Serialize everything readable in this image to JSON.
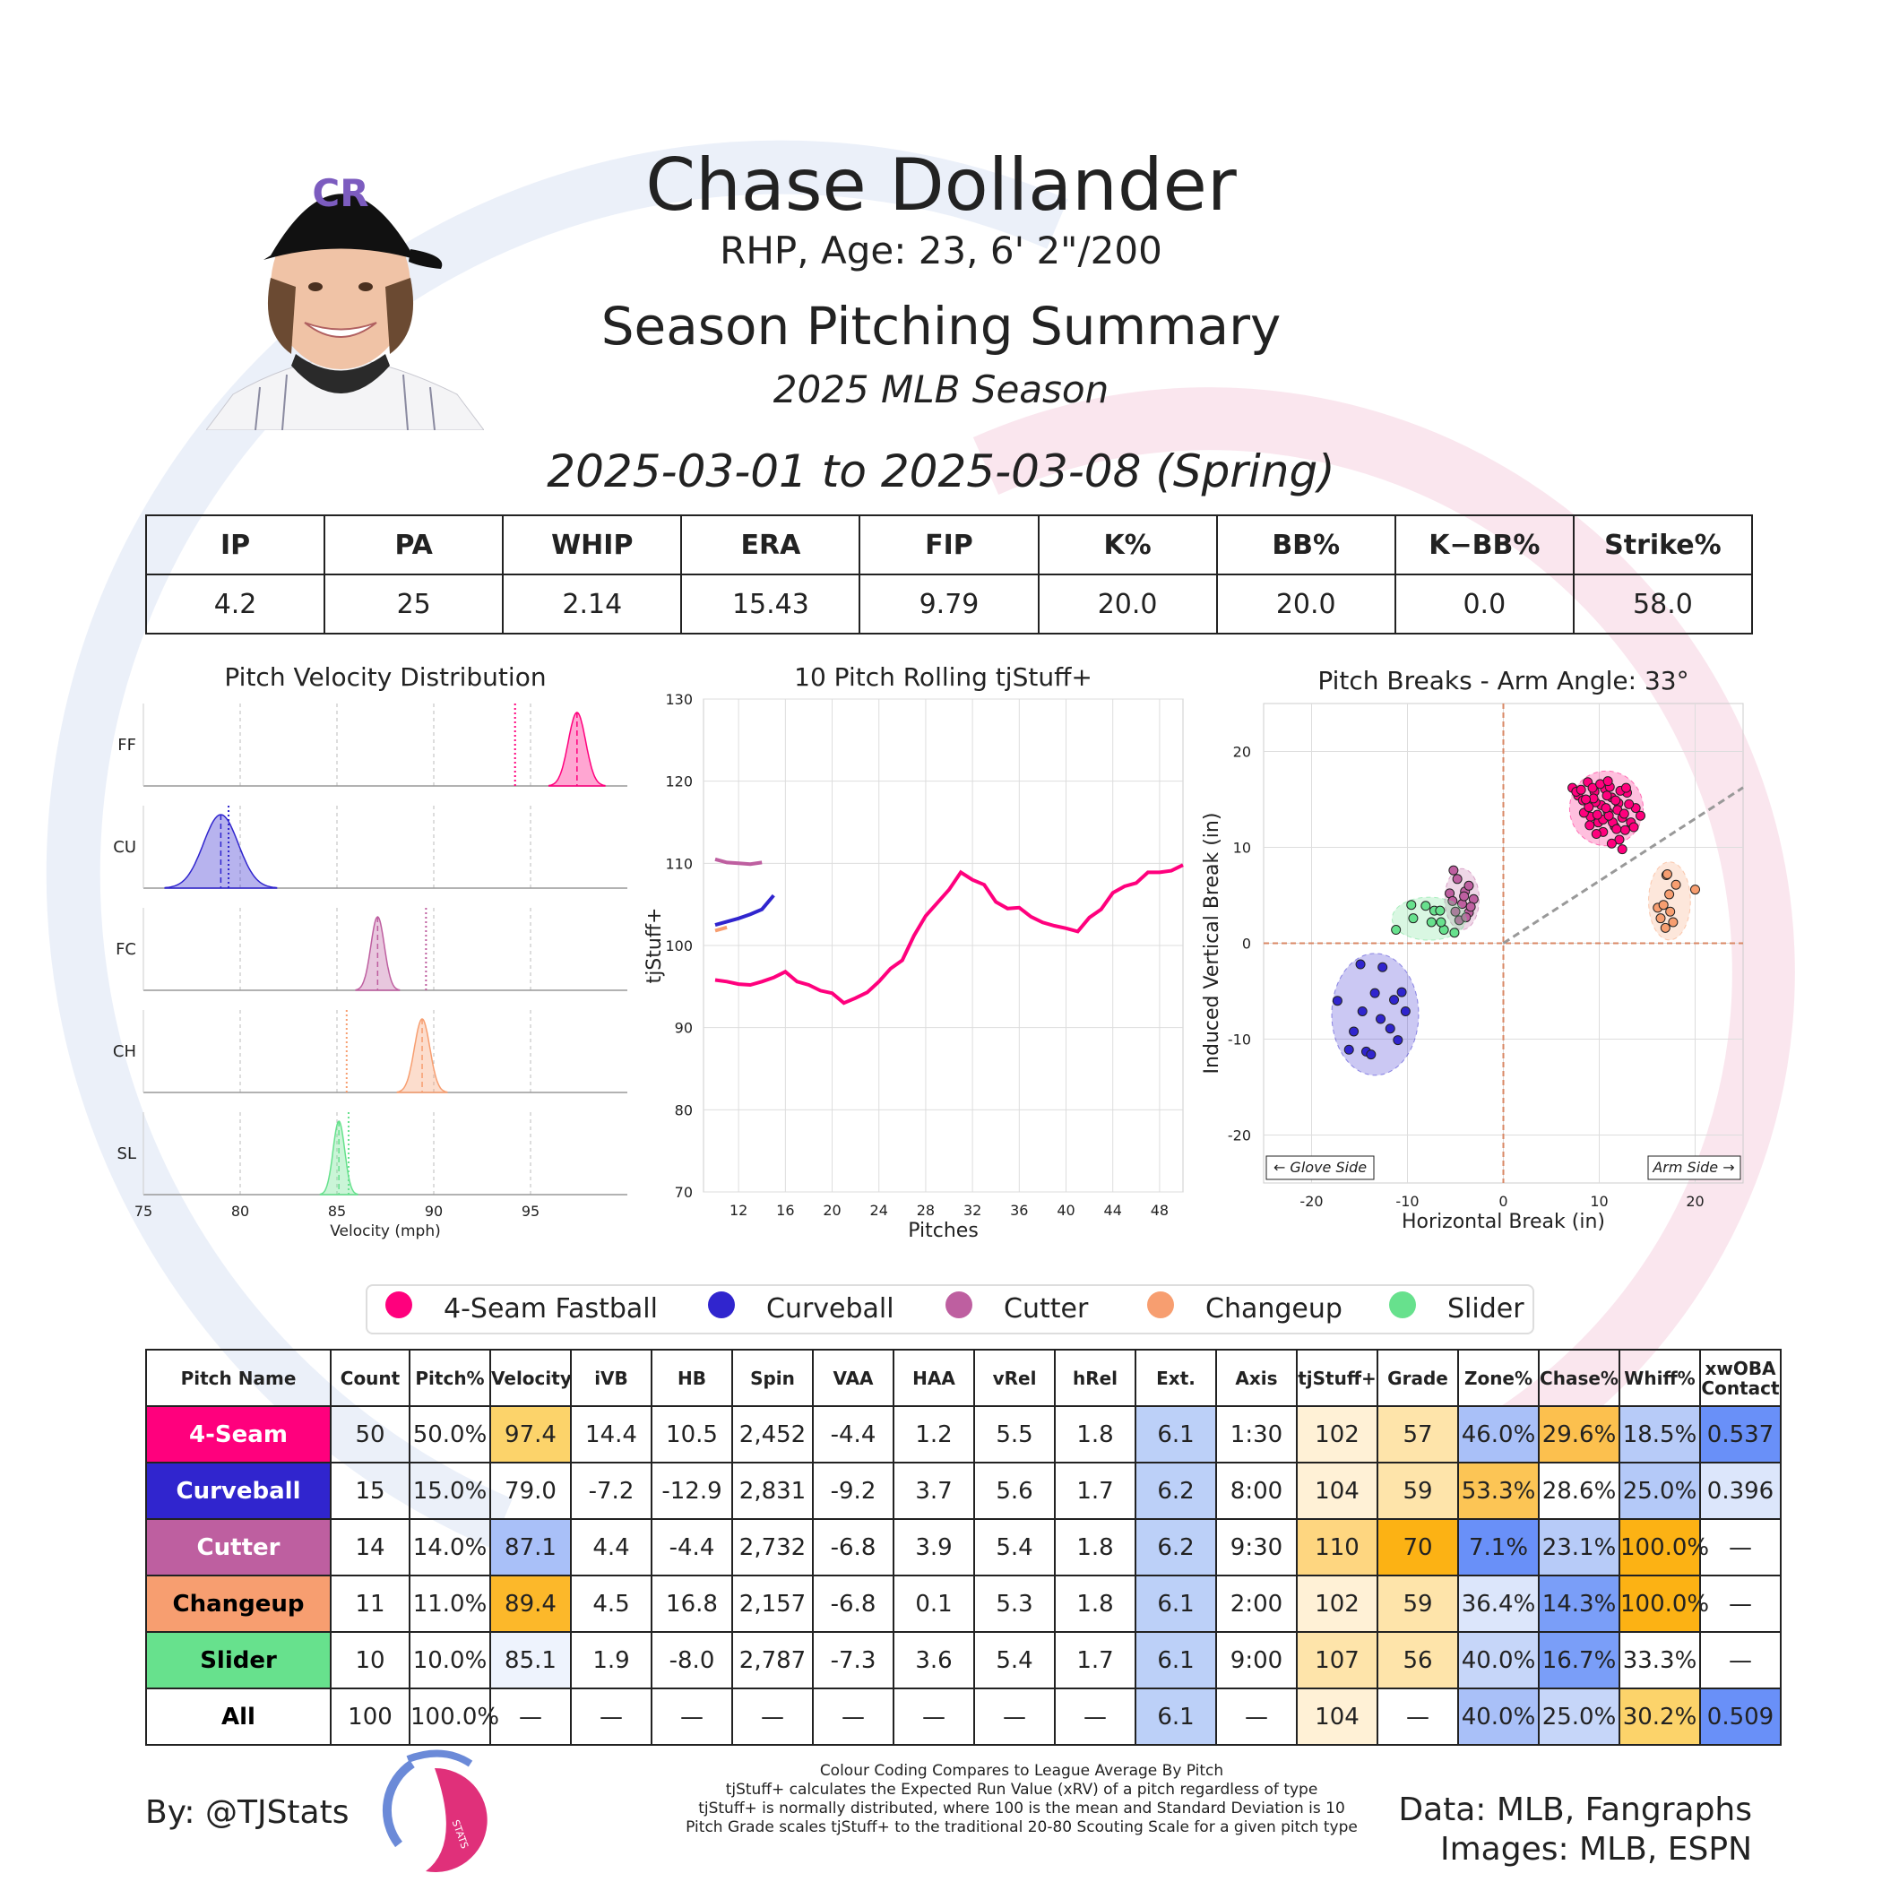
{
  "header": {
    "name": "Chase Dollander",
    "bio": "RHP, Age: 23, 6' 2\"/200",
    "title": "Season Pitching Summary",
    "season": "2025 MLB Season",
    "date_range": "2025-03-01 to 2025-03-08 (Spring)",
    "headshot_icon": "player-headshot-icon"
  },
  "summary": {
    "headers": [
      "IP",
      "PA",
      "WHIP",
      "ERA",
      "FIP",
      "K%",
      "BB%",
      "K−BB%",
      "Strike%"
    ],
    "values": [
      "4.2",
      "25",
      "2.14",
      "15.43",
      "9.79",
      "20.0",
      "20.0",
      "0.0",
      "58.0"
    ]
  },
  "colors": {
    "4-Seam Fastball": "#ff007d",
    "Curveball": "#3025ce",
    "Cutter": "#be5fa0",
    "Changeup": "#f79e70",
    "Slider": "#67e18d"
  },
  "legend": [
    "4-Seam Fastball",
    "Curveball",
    "Cutter",
    "Changeup",
    "Slider"
  ],
  "chart_data": [
    {
      "type": "area",
      "title": "Pitch Velocity Distribution",
      "xlabel": "Velocity (mph)",
      "ylabel": "",
      "xlim": [
        75,
        100
      ],
      "xticks": [
        75,
        80,
        85,
        90,
        95
      ],
      "rows": [
        {
          "code": "FF",
          "pitch": "4-Seam Fastball",
          "mean": 97.4,
          "sd": 0.45,
          "league_avg": 94.2
        },
        {
          "code": "CU",
          "pitch": "Curveball",
          "mean": 79.0,
          "sd": 0.9,
          "league_avg": 79.4
        },
        {
          "code": "FC",
          "pitch": "Cutter",
          "mean": 87.1,
          "sd": 0.35,
          "league_avg": 89.6
        },
        {
          "code": "CH",
          "pitch": "Changeup",
          "mean": 89.4,
          "sd": 0.4,
          "league_avg": 85.5
        },
        {
          "code": "SL",
          "pitch": "Slider",
          "mean": 85.1,
          "sd": 0.3,
          "league_avg": 85.6
        }
      ]
    },
    {
      "type": "line",
      "title": "10 Pitch Rolling tjStuff+",
      "xlabel": "Pitches",
      "ylabel": "tjStuff+",
      "xlim": [
        9,
        50
      ],
      "ylim": [
        70,
        130
      ],
      "xticks": [
        12,
        16,
        20,
        24,
        28,
        32,
        36,
        40,
        44,
        48
      ],
      "yticks": [
        70,
        80,
        90,
        100,
        110,
        120,
        130
      ],
      "series": [
        {
          "pitch": "4-Seam Fastball",
          "x": [
            10,
            11,
            12,
            13,
            14,
            15,
            16,
            17,
            18,
            19,
            20,
            21,
            22,
            23,
            24,
            25,
            26,
            27,
            28,
            29,
            30,
            31,
            32,
            33,
            34,
            35,
            36,
            37,
            38,
            39,
            40,
            41,
            42,
            43,
            44,
            45,
            46,
            47,
            48,
            49,
            50
          ],
          "values": [
            95.8,
            95.6,
            95.3,
            95.2,
            95.6,
            96.1,
            96.8,
            95.6,
            95.2,
            94.5,
            94.2,
            93.0,
            93.6,
            94.3,
            95.6,
            97.2,
            98.2,
            101.2,
            103.6,
            105.2,
            106.8,
            108.9,
            108.0,
            107.4,
            105.3,
            104.5,
            104.6,
            103.5,
            102.8,
            102.4,
            102.1,
            101.7,
            103.4,
            104.4,
            106.4,
            107.2,
            107.6,
            108.9,
            108.9,
            109.1,
            109.8
          ]
        },
        {
          "pitch": "Curveball",
          "x": [
            10,
            11,
            12,
            13,
            14,
            15
          ],
          "values": [
            102.5,
            102.9,
            103.3,
            103.8,
            104.4,
            106.1
          ]
        },
        {
          "pitch": "Cutter",
          "x": [
            10,
            11,
            12,
            13,
            14
          ],
          "values": [
            110.5,
            110.1,
            110.0,
            109.9,
            110.1
          ]
        },
        {
          "pitch": "Changeup",
          "x": [
            10,
            11
          ],
          "values": [
            101.8,
            102.2
          ]
        }
      ]
    },
    {
      "type": "scatter",
      "title": "Pitch Breaks - Arm Angle: 33°",
      "xlabel": "Horizontal Break (in)",
      "ylabel": "Induced Vertical Break (in)",
      "xlim": [
        -25,
        25
      ],
      "ylim": [
        -25,
        25
      ],
      "xticks": [
        -20,
        -10,
        0,
        10,
        20
      ],
      "yticks": [
        -20,
        -10,
        0,
        10,
        20
      ],
      "arm_angle_deg": 33,
      "annotations": [
        "← Glove Side",
        "Arm Side →"
      ],
      "series": [
        {
          "pitch": "4-Seam Fastball",
          "points": [
            [
              7.2,
              16.2
            ],
            [
              7.8,
              15.4
            ],
            [
              8.3,
              14.9
            ],
            [
              8.8,
              16.8
            ],
            [
              9.1,
              13.2
            ],
            [
              9.5,
              15.8
            ],
            [
              9.9,
              12.6
            ],
            [
              10.2,
              14.4
            ],
            [
              10.6,
              16.1
            ],
            [
              10.9,
              13.7
            ],
            [
              11.3,
              15.2
            ],
            [
              11.6,
              12.2
            ],
            [
              12.0,
              14.6
            ],
            [
              12.4,
              13.1
            ],
            [
              12.9,
              15.7
            ],
            [
              13.3,
              12.6
            ],
            [
              13.8,
              14.1
            ],
            [
              14.3,
              13.3
            ],
            [
              8.4,
              13.6
            ],
            [
              9.6,
              14.7
            ],
            [
              10.4,
              12.9
            ],
            [
              11.1,
              16.3
            ],
            [
              11.9,
              13.9
            ],
            [
              12.7,
              11.8
            ],
            [
              9.3,
              16.2
            ],
            [
              10.8,
              15.4
            ],
            [
              13.1,
              14.5
            ],
            [
              7.6,
              15.8
            ],
            [
              11.4,
              12.6
            ],
            [
              12.2,
              15.9
            ],
            [
              9.8,
              13.4
            ],
            [
              10.1,
              16.6
            ],
            [
              8.9,
              14.2
            ],
            [
              12.6,
              13.5
            ],
            [
              11.7,
              14.9
            ],
            [
              10.4,
              11.6
            ],
            [
              9.4,
              15.1
            ],
            [
              11.0,
              13.3
            ],
            [
              13.6,
              12.1
            ],
            [
              12.1,
              10.8
            ],
            [
              9.0,
              12.3
            ],
            [
              10.7,
              14.1
            ],
            [
              8.1,
              16.0
            ],
            [
              11.3,
              10.4
            ],
            [
              12.8,
              16.2
            ],
            [
              9.7,
              11.4
            ],
            [
              10.9,
              16.9
            ],
            [
              12.4,
              9.8
            ],
            [
              8.6,
              15.0
            ],
            [
              11.8,
              11.9
            ]
          ]
        },
        {
          "pitch": "Curveball",
          "points": [
            [
              -17.3,
              -6.0
            ],
            [
              -15.6,
              -9.2
            ],
            [
              -16.1,
              -11.1
            ],
            [
              -14.3,
              -11.3
            ],
            [
              -14.7,
              -7.1
            ],
            [
              -13.4,
              -5.2
            ],
            [
              -12.8,
              -7.9
            ],
            [
              -11.4,
              -5.9
            ],
            [
              -10.6,
              -5.1
            ],
            [
              -11.8,
              -8.9
            ],
            [
              -12.6,
              -2.5
            ],
            [
              -13.8,
              -11.6
            ],
            [
              -10.2,
              -7.1
            ],
            [
              -14.9,
              -2.2
            ],
            [
              -11.0,
              -10.1
            ]
          ]
        },
        {
          "pitch": "Cutter",
          "points": [
            [
              -5.6,
              5.2
            ],
            [
              -4.3,
              4.1
            ],
            [
              -3.6,
              3.2
            ],
            [
              -4.0,
              5.4
            ],
            [
              -5.2,
              7.6
            ],
            [
              -3.1,
              4.6
            ],
            [
              -4.6,
              2.4
            ],
            [
              -3.6,
              6.0
            ],
            [
              -5.0,
              3.3
            ],
            [
              -4.1,
              4.9
            ],
            [
              -3.4,
              3.8
            ],
            [
              -4.8,
              6.7
            ],
            [
              -3.9,
              2.7
            ],
            [
              -5.3,
              4.4
            ]
          ]
        },
        {
          "pitch": "Changeup",
          "points": [
            [
              16.1,
              3.7
            ],
            [
              17.0,
              7.1
            ],
            [
              18.0,
              6.1
            ],
            [
              17.3,
              5.1
            ],
            [
              20.0,
              5.6
            ],
            [
              17.7,
              2.2
            ],
            [
              16.7,
              4.0
            ],
            [
              17.4,
              3.3
            ],
            [
              16.4,
              2.6
            ],
            [
              17.1,
              7.2
            ],
            [
              16.9,
              1.6
            ]
          ]
        },
        {
          "pitch": "Slider",
          "points": [
            [
              -11.2,
              1.4
            ],
            [
              -9.4,
              2.6
            ],
            [
              -9.6,
              4.0
            ],
            [
              -8.1,
              3.9
            ],
            [
              -7.5,
              2.2
            ],
            [
              -7.2,
              3.4
            ],
            [
              -6.2,
              1.4
            ],
            [
              -5.1,
              1.1
            ],
            [
              -6.5,
              2.2
            ],
            [
              -6.6,
              3.4
            ]
          ]
        }
      ]
    }
  ],
  "pitch_table": {
    "headers": [
      "Pitch Name",
      "Count",
      "Pitch%",
      "Velocity",
      "iVB",
      "HB",
      "Spin",
      "VAA",
      "HAA",
      "vRel",
      "hRel",
      "Ext.",
      "Axis",
      "tjStuff+",
      "Grade",
      "Zone%",
      "Chase%",
      "Whiff%",
      "xwOBA Contact"
    ],
    "rows": [
      {
        "name": "4-Seam",
        "name_bg": "#ff007d",
        "name_fg": "#ffffff",
        "cells": [
          "50",
          "50.0%",
          "97.4",
          "14.4",
          "10.5",
          "2,452",
          "-4.4",
          "1.2",
          "5.5",
          "1.8",
          "6.1",
          "1:30",
          "102",
          "57",
          "46.0%",
          "29.6%",
          "18.5%",
          "0.537"
        ],
        "bgs": [
          "",
          "",
          "#fcd36a",
          "",
          "",
          "",
          "",
          "",
          "",
          "",
          "#bcd0f8",
          "",
          "#fff1d6",
          "#fee4aa",
          "#a9c0f8",
          "#fcc04e",
          "#b7cbf8",
          "#6990f8"
        ]
      },
      {
        "name": "Curveball",
        "name_bg": "#3025ce",
        "name_fg": "#ffffff",
        "cells": [
          "15",
          "15.0%",
          "79.0",
          "-7.2",
          "-12.9",
          "2,831",
          "-9.2",
          "3.7",
          "5.6",
          "1.7",
          "6.2",
          "8:00",
          "104",
          "59",
          "53.3%",
          "28.6%",
          "25.0%",
          "0.396"
        ],
        "bgs": [
          "",
          "",
          "",
          "",
          "",
          "",
          "",
          "",
          "",
          "",
          "#bcd0f8",
          "",
          "#fff1d6",
          "#fee4aa",
          "#fcc555",
          "",
          "#b4c9f8",
          "#dce6fb"
        ]
      },
      {
        "name": "Cutter",
        "name_bg": "#be5fa0",
        "name_fg": "#ffffff",
        "cells": [
          "14",
          "14.0%",
          "87.1",
          "4.4",
          "-4.4",
          "2,732",
          "-6.8",
          "3.9",
          "5.4",
          "1.8",
          "6.2",
          "9:30",
          "110",
          "70",
          "7.1%",
          "23.1%",
          "100.0%",
          "—"
        ],
        "bgs": [
          "",
          "",
          "#a9c0f8",
          "",
          "",
          "",
          "",
          "",
          "",
          "",
          "#bcd0f8",
          "",
          "#fed680",
          "#fcb214",
          "#6990f8",
          "#b7cbf8",
          "#fcb214",
          ""
        ]
      },
      {
        "name": "Changeup",
        "name_bg": "#f79e70",
        "name_fg": "#000000",
        "cells": [
          "11",
          "11.0%",
          "89.4",
          "4.5",
          "16.8",
          "2,157",
          "-6.8",
          "0.1",
          "5.3",
          "1.8",
          "6.1",
          "2:00",
          "102",
          "59",
          "36.4%",
          "14.3%",
          "100.0%",
          "—"
        ],
        "bgs": [
          "",
          "",
          "#fcb82a",
          "",
          "",
          "",
          "",
          "",
          "",
          "",
          "#bcd0f8",
          "",
          "#fff1d6",
          "#fee4aa",
          "#dce6fb",
          "#7a9ef8",
          "#fcb214",
          ""
        ]
      },
      {
        "name": "Slider",
        "name_bg": "#67e18d",
        "name_fg": "#000000",
        "cells": [
          "10",
          "10.0%",
          "85.1",
          "1.9",
          "-8.0",
          "2,787",
          "-7.3",
          "3.6",
          "5.4",
          "1.7",
          "6.1",
          "9:00",
          "107",
          "56",
          "40.0%",
          "16.7%",
          "33.3%",
          "—"
        ],
        "bgs": [
          "",
          "",
          "#eef3fd",
          "",
          "",
          "",
          "",
          "",
          "",
          "",
          "#bcd0f8",
          "",
          "#fee4aa",
          "#fee4aa",
          "#c6d6f9",
          "#7a9ef8",
          "",
          ""
        ]
      },
      {
        "name": "All",
        "name_bg": "#ffffff",
        "name_fg": "#000000",
        "cells": [
          "100",
          "100.0%",
          "—",
          "—",
          "—",
          "—",
          "—",
          "—",
          "—",
          "—",
          "6.1",
          "—",
          "104",
          "—",
          "40.0%",
          "25.0%",
          "30.2%",
          "0.509"
        ],
        "bgs": [
          "",
          "",
          "",
          "",
          "",
          "",
          "",
          "",
          "",
          "",
          "#bcd0f8",
          "",
          "#fff1d6",
          "",
          "#a9c0f8",
          "#c6d6f9",
          "#fcd36a",
          "#6990f8"
        ]
      }
    ]
  },
  "footer": {
    "byline": "By: @TJStats",
    "notes": [
      "Colour Coding Compares to League Average By Pitch",
      "tjStuff+ calculates the Expected Run Value (xRV) of a pitch regardless of type",
      "tjStuff+ is normally distributed, where 100 is the mean and Standard Deviation is 10",
      "Pitch Grade scales tjStuff+ to the traditional 20-80 Scouting Scale for a given pitch type"
    ],
    "data_source": "Data: MLB, Fangraphs",
    "image_source": "Images: MLB, ESPN",
    "logo_text": "STATS",
    "logo_icon": "tjstats-logo-icon"
  }
}
